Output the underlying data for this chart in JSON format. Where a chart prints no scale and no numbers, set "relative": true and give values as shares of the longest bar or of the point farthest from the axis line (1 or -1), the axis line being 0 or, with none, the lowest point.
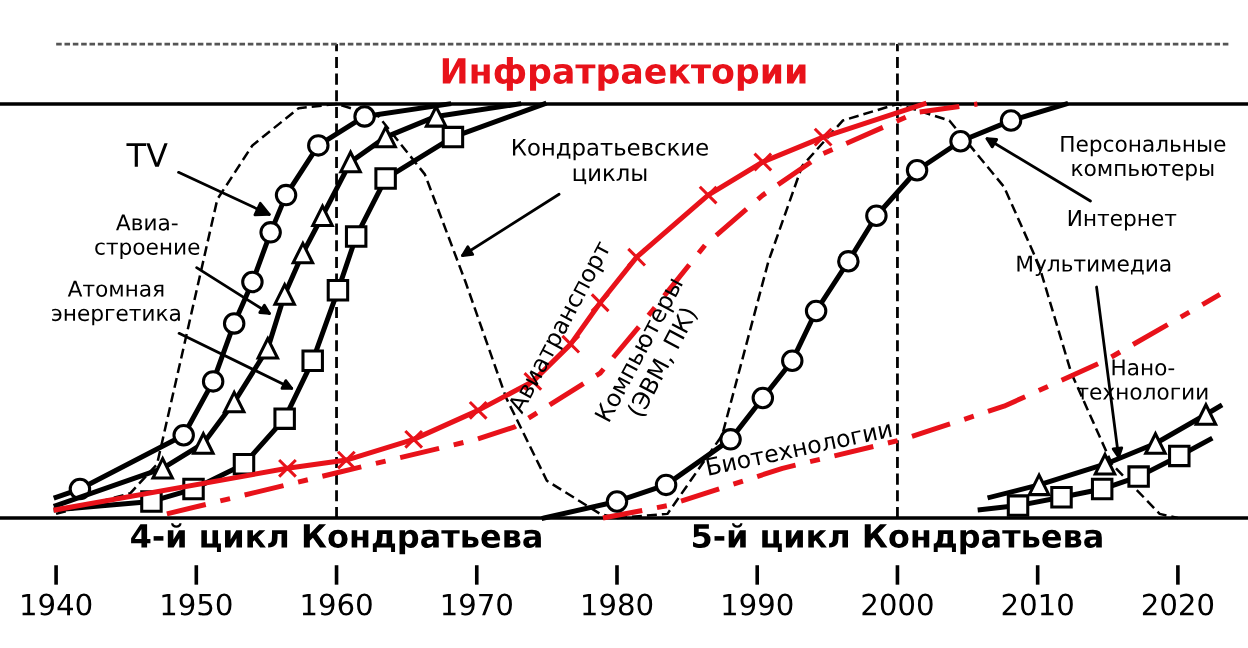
{
  "chart_data": {
    "type": "line",
    "title": "Инфратраектории",
    "relative": true,
    "xlim": [
      1936,
      2025
    ],
    "xticks": [
      1940,
      1950,
      1960,
      1970,
      1980,
      1990,
      2000,
      2010,
      2020
    ],
    "grid": false,
    "legend": false,
    "series": [
      {
        "color": "#000000",
        "marker": "none",
        "line_style": "dashed",
        "x": [
          1940,
          1945.3,
          1947.2,
          1951.5,
          1954,
          1957.3,
          1960,
          1963,
          1966.3,
          1969.2,
          1972.1,
          1975,
          1978.8,
          1980
        ],
        "values": [
          0.01,
          0.06,
          0.13,
          0.77,
          0.9,
          0.99,
          1.0,
          0.97,
          0.83,
          0.57,
          0.29,
          0.09,
          0.01,
          0.0
        ]
      },
      {
        "color": "#000000",
        "marker": "none",
        "line_style": "dashed",
        "x": [
          1980,
          1983.6,
          1987.5,
          1990.8,
          1993.2,
          1996.1,
          2000,
          2003.7,
          2007.6,
          2010.1,
          2012.4,
          2015.3,
          2018.7,
          2020
        ],
        "values": [
          0.0,
          0.01,
          0.2,
          0.62,
          0.85,
          0.96,
          1.0,
          0.96,
          0.8,
          0.61,
          0.35,
          0.13,
          0.01,
          0.0
        ]
      },
      {
        "color": "#000000",
        "marker": "circle",
        "line_style": "solid",
        "x": [
          1940,
          1941.7,
          1949.1,
          1951.2,
          1952.7,
          1954.0,
          1955.3,
          1956.4,
          1958.7,
          1962.0,
          1968
        ],
        "values": [
          0.05,
          0.07,
          0.2,
          0.33,
          0.47,
          0.57,
          0.69,
          0.78,
          0.9,
          0.97,
          1.0
        ]
      },
      {
        "color": "#000000",
        "marker": "triangle",
        "line_style": "solid",
        "x": [
          1940,
          1947.6,
          1950.5,
          1952.7,
          1955.1,
          1956.3,
          1957.6,
          1959.0,
          1961.0,
          1963.5,
          1967.1,
          1973
        ],
        "values": [
          0.03,
          0.12,
          0.18,
          0.28,
          0.41,
          0.54,
          0.64,
          0.73,
          0.86,
          0.92,
          0.97,
          1.0
        ]
      },
      {
        "color": "#000000",
        "marker": "square",
        "line_style": "solid",
        "x": [
          1940,
          1946.8,
          1949.8,
          1953.4,
          1956.3,
          1958.3,
          1960.1,
          1961.4,
          1963.5,
          1968.3,
          1974.8
        ],
        "values": [
          0.02,
          0.04,
          0.07,
          0.13,
          0.24,
          0.38,
          0.55,
          0.68,
          0.82,
          0.92,
          1.0
        ]
      },
      {
        "name": "Авиатранспорт",
        "color": "#e8121a",
        "marker": "cross",
        "line_style": "solid",
        "x": [
          1940,
          1956.5,
          1960.7,
          1965.5,
          1970.1,
          1974.0,
          1976.7,
          1978.8,
          1981.4,
          1986.5,
          1990.4,
          1994.7,
          2001.9
        ],
        "values": [
          0.02,
          0.12,
          0.14,
          0.19,
          0.26,
          0.33,
          0.42,
          0.52,
          0.63,
          0.78,
          0.86,
          0.92,
          1.0
        ]
      },
      {
        "name": "Компьютеры\n(ЭВМ, ПК)",
        "color": "#e8121a",
        "marker": "none",
        "line_style": "dashdot",
        "x": [
          1947.9,
          1960.1,
          1970.0,
          1972.7,
          1978.8,
          1982.5,
          1986.3,
          1990.4,
          1994.7,
          2001.4,
          2005.7
        ],
        "values": [
          0.01,
          0.11,
          0.19,
          0.22,
          0.35,
          0.5,
          0.66,
          0.78,
          0.88,
          0.98,
          1.0
        ]
      },
      {
        "name": "Биотехнологии",
        "color": "#e8121a",
        "marker": "none",
        "line_style": "dashdot",
        "x": [
          1979,
          1983.6,
          1991.8,
          2000.4,
          2007.6,
          2014.8,
          2023
        ],
        "values": [
          0.0,
          0.03,
          0.12,
          0.19,
          0.27,
          0.38,
          0.54
        ]
      },
      {
        "color": "#000000",
        "marker": "circle",
        "line_style": "solid",
        "x": [
          1974.8,
          1980,
          1983.5,
          1988.1,
          1990.4,
          1992.5,
          1994.2,
          1996.5,
          1998.5,
          2001.4,
          2004.5,
          2008.1,
          2012
        ],
        "values": [
          0.0,
          0.04,
          0.08,
          0.19,
          0.29,
          0.38,
          0.5,
          0.62,
          0.73,
          0.84,
          0.91,
          0.96,
          1.0
        ]
      },
      {
        "color": "#000000",
        "marker": "triangle",
        "line_style": "solid",
        "x": [
          2006.6,
          2010.1,
          2014.8,
          2018.4,
          2022,
          2023
        ],
        "values": [
          0.05,
          0.08,
          0.13,
          0.18,
          0.25,
          0.27
        ]
      },
      {
        "color": "#000000",
        "marker": "square",
        "line_style": "solid",
        "x": [
          2005.9,
          2008.6,
          2011.7,
          2014.6,
          2017.2,
          2020.1,
          2022.3
        ],
        "values": [
          0.02,
          0.03,
          0.05,
          0.07,
          0.1,
          0.15,
          0.19
        ]
      }
    ],
    "ref_lines": [
      {
        "axis": "x",
        "value": 1960,
        "line_style": "dashed",
        "color": "#000000"
      },
      {
        "axis": "x",
        "value": 2000,
        "line_style": "dashed",
        "color": "#000000"
      }
    ],
    "annotations": [
      {
        "text": "TV",
        "x": 1955.4,
        "y": 0.73
      },
      {
        "text": "Авиа-\nстроение",
        "x": 1955.4,
        "y": 0.49
      },
      {
        "text": "Атомная\nэнергетика",
        "x": 1957.0,
        "y": 0.31
      },
      {
        "text": "Кондратьевские\nциклы",
        "x": 1968.8,
        "y": 0.63
      },
      {
        "text": "Персональные\nкомпьютеры"
      },
      {
        "text": "Интернет",
        "x": 2006.2,
        "y": 0.92
      },
      {
        "text": "Мультимедиа",
        "x": 2015.8,
        "y": 0.14
      },
      {
        "text": "Нано-\nтехнологии"
      },
      "4-й цикл Кондратьева",
      "5-й цикл Кондратьева"
    ]
  }
}
